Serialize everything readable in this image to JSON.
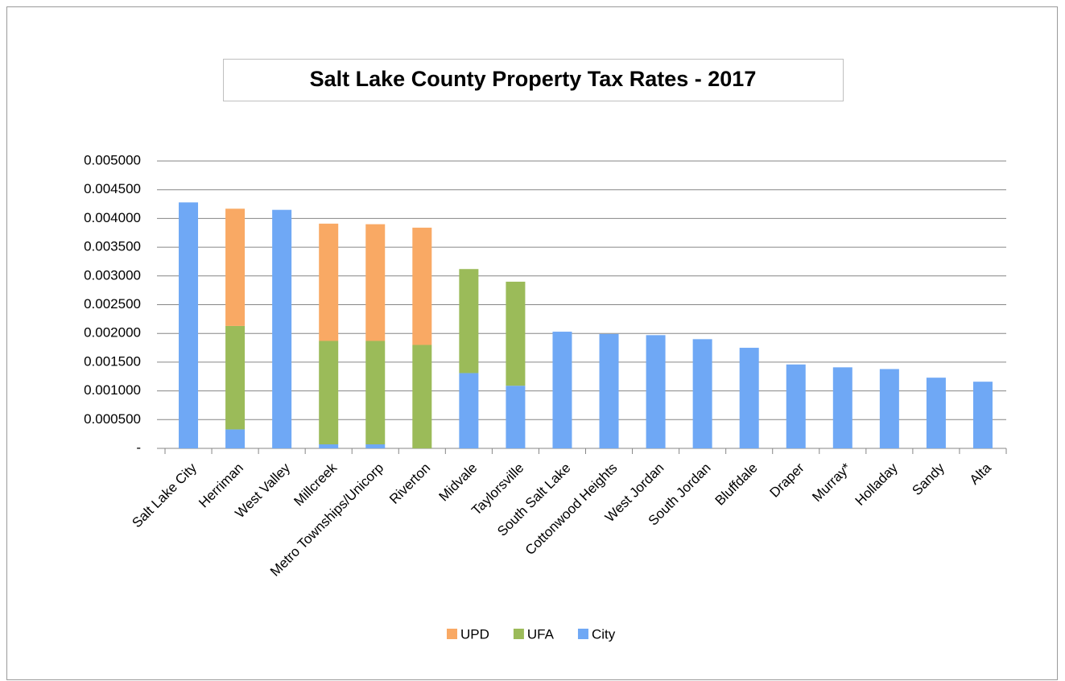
{
  "chart_data": {
    "type": "stacked_bar",
    "title": "Salt Lake County Property Tax Rates - 2017",
    "categories": [
      "Salt Lake City",
      "Herriman",
      "West Valley",
      "Millcreek",
      "Metro Townships/Unicorp",
      "Riverton",
      "Midvale",
      "Taylorsville",
      "South Salt Lake",
      "Cottonwood Heights",
      "West Jordan",
      "South Jordan",
      "Bluffdale",
      "Draper",
      "Murray*",
      "Holladay",
      "Sandy",
      "Alta"
    ],
    "series": [
      {
        "name": "UPD",
        "color": "#f9a964",
        "values": [
          0,
          0.00204,
          0,
          0.00204,
          0.00203,
          0.00204,
          0,
          0,
          0,
          0,
          0,
          0,
          0,
          0,
          0,
          0,
          0,
          0
        ]
      },
      {
        "name": "UFA",
        "color": "#9bbb59",
        "values": [
          0,
          0.0018,
          0,
          0.0018,
          0.0018,
          0.0018,
          0.00181,
          0.00181,
          0,
          0,
          0,
          0,
          0,
          0,
          0,
          0,
          0,
          0
        ]
      },
      {
        "name": "City",
        "color": "#6fa8f5",
        "values": [
          0.00428,
          0.00033,
          0.00415,
          7e-05,
          7e-05,
          0,
          0.00131,
          0.00109,
          0.00203,
          0.00199,
          0.00197,
          0.0019,
          0.00175,
          0.00146,
          0.00141,
          0.00138,
          0.00123,
          0.00116
        ]
      }
    ],
    "ylim": [
      0,
      0.005
    ],
    "yticks": [
      {
        "value": 0,
        "label": "-"
      },
      {
        "value": 0.0005,
        "label": "0.000500"
      },
      {
        "value": 0.001,
        "label": "0.001000"
      },
      {
        "value": 0.0015,
        "label": "0.001500"
      },
      {
        "value": 0.002,
        "label": "0.002000"
      },
      {
        "value": 0.0025,
        "label": "0.002500"
      },
      {
        "value": 0.003,
        "label": "0.003000"
      },
      {
        "value": 0.0035,
        "label": "0.003500"
      },
      {
        "value": 0.004,
        "label": "0.004000"
      },
      {
        "value": 0.0045,
        "label": "0.004500"
      },
      {
        "value": 0.005,
        "label": "0.005000"
      }
    ],
    "grid": true,
    "legend": "bottom"
  }
}
